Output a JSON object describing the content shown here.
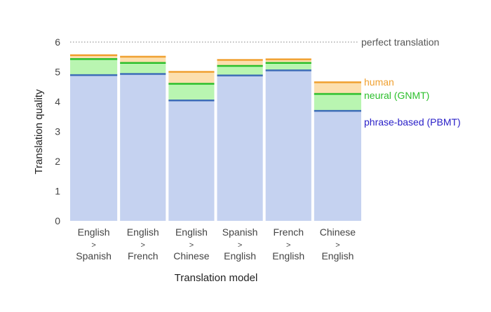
{
  "chart_data": {
    "type": "bar",
    "categories": [
      [
        "English",
        ">",
        "Spanish"
      ],
      [
        "English",
        ">",
        "French"
      ],
      [
        "English",
        ">",
        "Chinese"
      ],
      [
        "Spanish",
        ">",
        "English"
      ],
      [
        "French",
        ">",
        "English"
      ],
      [
        "Chinese",
        ">",
        "English"
      ]
    ],
    "series": [
      {
        "name": "phrase-based (PBMT)",
        "values": [
          4.89,
          4.93,
          4.04,
          4.88,
          5.05,
          3.69
        ],
        "fill": "#c5d2f0",
        "line": "#3d6db7"
      },
      {
        "name": "neural (GNMT)",
        "values": [
          5.43,
          5.3,
          4.6,
          5.2,
          5.3,
          4.26
        ],
        "fill": "#b9f5b1",
        "line": "#2bbf2b"
      },
      {
        "name": "human",
        "values": [
          5.56,
          5.51,
          5.0,
          5.4,
          5.42,
          4.65
        ],
        "fill": "#fcdfae",
        "line": "#f0a030"
      }
    ],
    "reference": {
      "value": 6,
      "label": "perfect translation",
      "color": "#555555"
    },
    "xlabel": "Translation model",
    "ylabel": "Translation quality",
    "ylim": [
      0,
      6
    ],
    "yticks": [
      0,
      1,
      2,
      3,
      4,
      5,
      6
    ],
    "grid": false,
    "legend": "right",
    "colors": {
      "human_text": "#f0a030",
      "neural_text": "#2bbf2b",
      "pbmt_text": "#2a20c8",
      "tick_text": "#444444",
      "axis_text": "#222222"
    }
  }
}
